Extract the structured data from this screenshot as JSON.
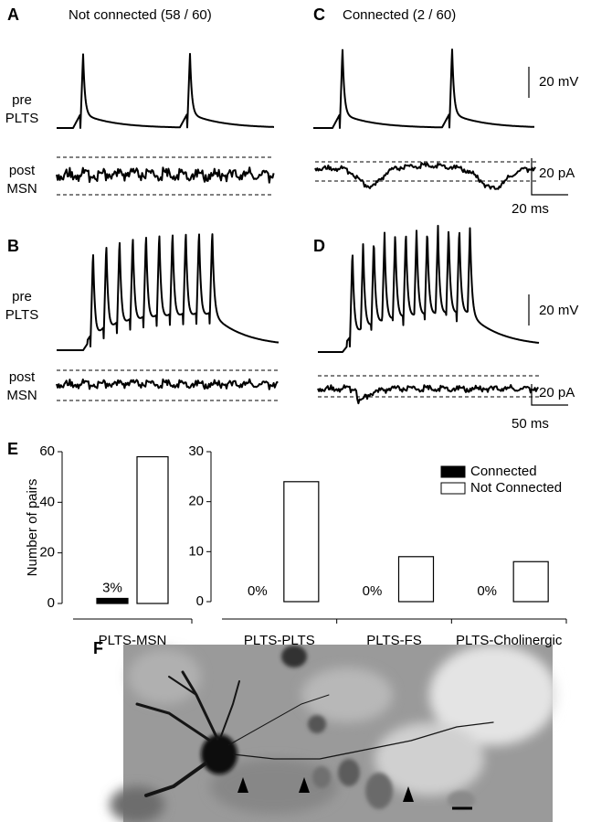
{
  "panel_a": {
    "label": "A",
    "title": "Not connected (58 / 60)",
    "pre": [
      "pre",
      "PLTS"
    ],
    "post": [
      "post",
      "MSN"
    ]
  },
  "panel_c": {
    "label": "C",
    "title": "Connected (2 / 60)",
    "scale_voltage": "20 mV",
    "scale_current": "20 pA",
    "scale_time": "20 ms"
  },
  "panel_b": {
    "label": "B",
    "pre": [
      "pre",
      "PLTS"
    ],
    "post": [
      "post",
      "MSN"
    ]
  },
  "panel_d": {
    "label": "D",
    "scale_voltage": "20 mV",
    "scale_current": "20 pA",
    "scale_time": "50 ms"
  },
  "panel_e": {
    "label": "E"
  },
  "panel_f": {
    "label": "F"
  },
  "chart_data": [
    {
      "type": "bar",
      "y_label": "Number of pairs",
      "categories": [
        "PLTS-MSN"
      ],
      "series": [
        {
          "name": "Connected",
          "color": "#000000",
          "values": [
            2
          ],
          "value_labels": [
            "3%"
          ]
        },
        {
          "name": "Not Connected",
          "color": "#ffffff",
          "values": [
            58
          ]
        }
      ],
      "ylim": [
        0,
        60
      ],
      "yticks": [
        0,
        20,
        40,
        60
      ]
    },
    {
      "type": "bar",
      "categories": [
        "PLTS-PLTS",
        "PLTS-FS",
        "PLTS-Cholinergic"
      ],
      "series": [
        {
          "name": "Connected",
          "color": "#000000",
          "values": [
            0,
            0,
            0
          ],
          "value_labels": [
            "0%",
            "0%",
            "0%"
          ]
        },
        {
          "name": "Not Connected",
          "color": "#ffffff",
          "values": [
            24,
            9,
            8
          ]
        }
      ],
      "ylim": [
        0,
        30
      ],
      "yticks": [
        0,
        10,
        20,
        30
      ],
      "legend": "upper right"
    }
  ]
}
